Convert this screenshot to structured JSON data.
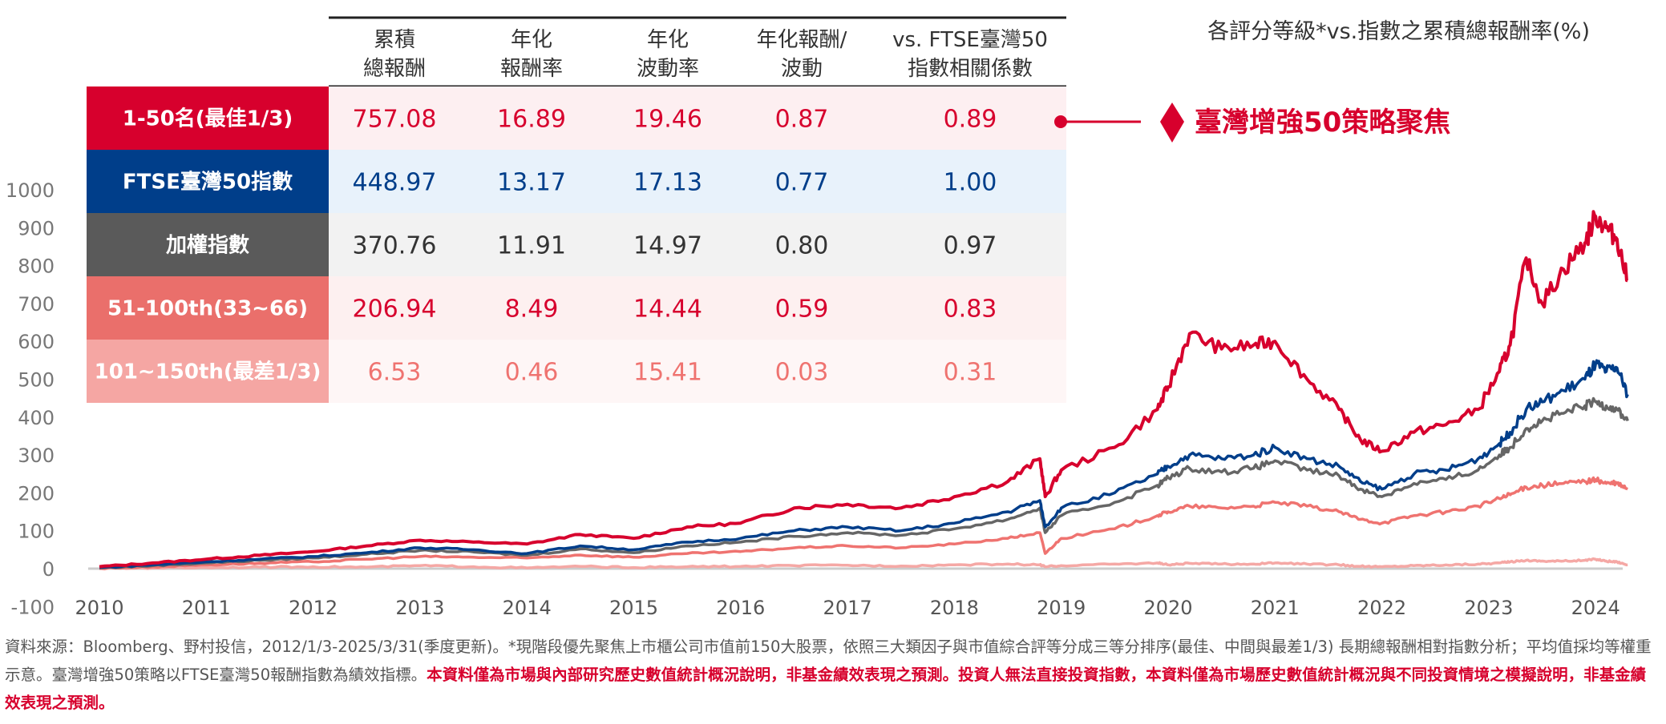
{
  "chart_title": "各評分等級*vs.指數之累積總報酬率(%)",
  "chart_data": {
    "type": "line",
    "title": "各評分等級*vs.指數之累積總報酬率(%)",
    "xlabel": "",
    "ylabel": "",
    "xlim": [
      2009.9,
      2024.35
    ],
    "ylim": [
      -100,
      1000
    ],
    "x_ticks": [
      "2010",
      "2011",
      "2012",
      "2013",
      "2014",
      "2015",
      "2016",
      "2017",
      "2018",
      "2019",
      "2020",
      "2021",
      "2022",
      "2023",
      "2024"
    ],
    "y_ticks": [
      "-100",
      "0",
      "100",
      "200",
      "300",
      "400",
      "500",
      "600",
      "700",
      "800",
      "900",
      "1000"
    ],
    "grid": false,
    "x": [
      2010.0,
      2010.5,
      2011.0,
      2011.5,
      2012.0,
      2012.5,
      2013.0,
      2013.5,
      2014.0,
      2014.5,
      2015.0,
      2015.5,
      2016.0,
      2016.5,
      2017.0,
      2017.5,
      2018.0,
      2018.5,
      2018.8,
      2018.85,
      2019.0,
      2019.5,
      2019.9,
      2020.0,
      2020.2,
      2020.5,
      2020.8,
      2021.0,
      2021.3,
      2021.6,
      2021.8,
      2022.0,
      2022.3,
      2022.6,
      2022.9,
      2023.1,
      2023.2,
      2023.35,
      2023.5,
      2023.7,
      2023.9,
      2024.0,
      2024.1,
      2024.2,
      2024.3
    ],
    "series": [
      {
        "name": "1-50名(最佳1/3)",
        "color": "#d7002d",
        "values": [
          5,
          15,
          25,
          35,
          45,
          60,
          75,
          70,
          65,
          90,
          80,
          110,
          120,
          160,
          170,
          160,
          190,
          230,
          290,
          190,
          260,
          320,
          420,
          480,
          620,
          580,
          590,
          600,
          500,
          420,
          340,
          310,
          360,
          380,
          420,
          520,
          590,
          820,
          700,
          790,
          860,
          930,
          900,
          870,
          760
        ]
      },
      {
        "name": "FTSE臺灣50指數",
        "color": "#003e8a",
        "values": [
          3,
          10,
          18,
          25,
          32,
          42,
          55,
          50,
          40,
          60,
          50,
          70,
          80,
          100,
          110,
          100,
          120,
          150,
          180,
          110,
          160,
          200,
          250,
          270,
          300,
          290,
          300,
          320,
          290,
          270,
          230,
          210,
          250,
          260,
          290,
          330,
          360,
          420,
          440,
          470,
          500,
          540,
          520,
          530,
          460
        ]
      },
      {
        "name": "加權指數",
        "color": "#666666",
        "values": [
          2,
          8,
          15,
          22,
          28,
          38,
          48,
          44,
          35,
          52,
          42,
          60,
          70,
          85,
          95,
          88,
          105,
          130,
          160,
          95,
          140,
          175,
          220,
          240,
          265,
          255,
          265,
          285,
          260,
          245,
          210,
          190,
          225,
          235,
          260,
          300,
          320,
          370,
          390,
          410,
          430,
          440,
          430,
          420,
          390
        ]
      },
      {
        "name": "51-100th(33~66)",
        "color": "#ef7370",
        "values": [
          1,
          5,
          10,
          14,
          18,
          25,
          32,
          30,
          28,
          36,
          30,
          40,
          45,
          55,
          60,
          55,
          65,
          80,
          95,
          40,
          80,
          105,
          140,
          150,
          165,
          160,
          165,
          175,
          165,
          150,
          130,
          120,
          140,
          150,
          165,
          185,
          195,
          215,
          220,
          225,
          230,
          235,
          225,
          225,
          210
        ]
      },
      {
        "name": "101~150th(最差1/3)",
        "color": "#f5a8a5",
        "values": [
          0,
          2,
          3,
          4,
          5,
          4,
          8,
          5,
          2,
          6,
          3,
          5,
          6,
          8,
          9,
          7,
          10,
          12,
          10,
          5,
          8,
          12,
          15,
          10,
          14,
          12,
          12,
          15,
          12,
          10,
          6,
          5,
          8,
          10,
          12,
          15,
          18,
          22,
          20,
          20,
          22,
          25,
          20,
          18,
          10
        ]
      }
    ],
    "zero_line_color": "#cccccc"
  },
  "table": {
    "headers": [
      [
        "累積",
        "總報酬"
      ],
      [
        "年化",
        "報酬率"
      ],
      [
        "年化",
        "波動率"
      ],
      [
        "年化報酬/",
        "波動"
      ],
      [
        "vs. FTSE臺灣50",
        "指數相關係數"
      ]
    ],
    "rows": [
      {
        "label": "1-50名(最佳1/3)",
        "label_bg": "#d7002d",
        "cell_bg": "#fdeff1",
        "text_color": "#d7002d",
        "values": [
          "757.08",
          "16.89",
          "19.46",
          "0.87",
          "0.89"
        ]
      },
      {
        "label": "FTSE臺灣50指數",
        "label_bg": "#003e8a",
        "cell_bg": "#e8f2fb",
        "text_color": "#003e8a",
        "values": [
          "448.97",
          "13.17",
          "17.13",
          "0.77",
          "1.00"
        ]
      },
      {
        "label": "加權指數",
        "label_bg": "#5a5a5a",
        "cell_bg": "#f2f2f2",
        "text_color": "#333333",
        "values": [
          "370.76",
          "11.91",
          "14.97",
          "0.80",
          "0.97"
        ]
      },
      {
        "label": "51-100th(33~66)",
        "label_bg": "#ea6f6b",
        "cell_bg": "#fdf0f0",
        "text_color": "#d7002d",
        "values": [
          "206.94",
          "8.49",
          "14.44",
          "0.59",
          "0.83"
        ]
      },
      {
        "label": "101~150th(最差1/3)",
        "label_bg": "#f5a6a3",
        "cell_bg": "#fef6f6",
        "text_color": "#ef7370",
        "values": [
          "6.53",
          "0.46",
          "15.41",
          "0.03",
          "0.31"
        ]
      }
    ]
  },
  "callout": {
    "label": "臺灣增強50策略聚焦",
    "color": "#d7002d"
  },
  "footnote": {
    "normal": "資料來源：Bloomberg、野村投信，2012/1/3-2025/3/31(季度更新)。*現階段優先聚焦上市櫃公司市值前150大股票，依照三大類因子與市值綜合評等分成三等分排序(最佳、中間與最差1/3) 長期總報酬相對指數分析；平均值採均等權重示意。臺灣增強50策略以FTSE臺灣50報酬指數為績效指標。",
    "emphasis": "本資料僅為市場與內部研究歷史數值統計概況說明，非基金績效表現之預測。投資人無法直接投資指數，本資料僅為市場歷史數值統計概況與不同投資情境之模擬說明，非基金績效表現之預測。"
  }
}
